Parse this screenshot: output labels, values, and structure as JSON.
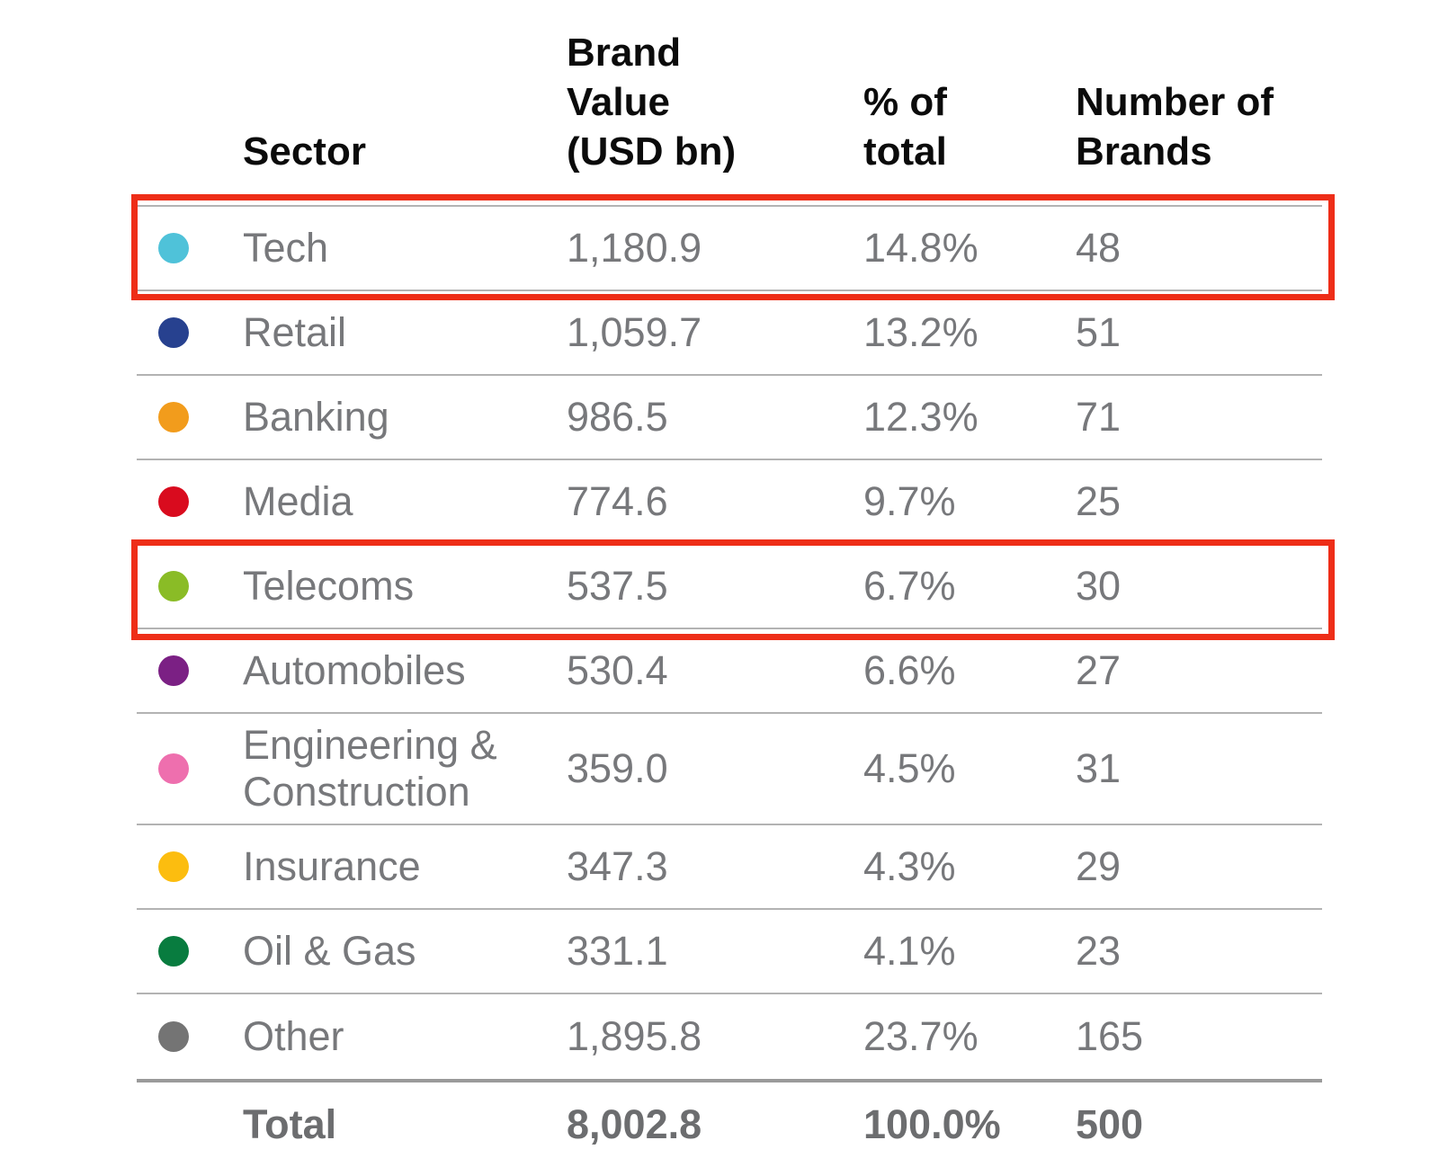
{
  "table": {
    "headers": {
      "sector": "Sector",
      "brand_value": "Brand\nValue\n(USD bn)",
      "pct_of_total": "% of\ntotal",
      "num_brands": "Number of\nBrands"
    },
    "rows": [
      {
        "sector": "Tech",
        "dot_color": "#4fc2d9",
        "brand_value": "1,180.9",
        "pct_of_total": "14.8%",
        "num_brands": "48",
        "highlighted": true
      },
      {
        "sector": "Retail",
        "dot_color": "#27418f",
        "brand_value": "1,059.7",
        "pct_of_total": "13.2%",
        "num_brands": "51",
        "highlighted": false
      },
      {
        "sector": "Banking",
        "dot_color": "#f29c1c",
        "brand_value": "986.5",
        "pct_of_total": "12.3%",
        "num_brands": "71",
        "highlighted": false
      },
      {
        "sector": "Media",
        "dot_color": "#d90b1e",
        "brand_value": "774.6",
        "pct_of_total": "9.7%",
        "num_brands": "25",
        "highlighted": false
      },
      {
        "sector": "Telecoms",
        "dot_color": "#8abc26",
        "brand_value": "537.5",
        "pct_of_total": "6.7%",
        "num_brands": "30",
        "highlighted": true
      },
      {
        "sector": "Automobiles",
        "dot_color": "#7b2084",
        "brand_value": "530.4",
        "pct_of_total": "6.6%",
        "num_brands": "27",
        "highlighted": false
      },
      {
        "sector": "Engineering &\nConstruction",
        "dot_color": "#ee6fae",
        "brand_value": "359.0",
        "pct_of_total": "4.5%",
        "num_brands": "31",
        "highlighted": false
      },
      {
        "sector": "Insurance",
        "dot_color": "#fcbd0f",
        "brand_value": "347.3",
        "pct_of_total": "4.3%",
        "num_brands": "29",
        "highlighted": false
      },
      {
        "sector": "Oil & Gas",
        "dot_color": "#087c3f",
        "brand_value": "331.1",
        "pct_of_total": "4.1%",
        "num_brands": "23",
        "highlighted": false
      },
      {
        "sector": "Other",
        "dot_color": "#747474",
        "brand_value": "1,895.8",
        "pct_of_total": "23.7%",
        "num_brands": "165",
        "highlighted": false
      }
    ],
    "total": {
      "label": "Total",
      "brand_value": "8,002.8",
      "pct_of_total": "100.0%",
      "num_brands": "500"
    }
  },
  "highlight": {
    "color": "#ee2e18"
  },
  "chart_data": {
    "type": "table",
    "title": "",
    "columns": [
      "Sector",
      "Brand Value (USD bn)",
      "% of total",
      "Number of Brands"
    ],
    "rows": [
      [
        "Tech",
        1180.9,
        "14.8%",
        48
      ],
      [
        "Retail",
        1059.7,
        "13.2%",
        51
      ],
      [
        "Banking",
        986.5,
        "12.3%",
        71
      ],
      [
        "Media",
        774.6,
        "9.7%",
        25
      ],
      [
        "Telecoms",
        537.5,
        "6.7%",
        30
      ],
      [
        "Automobiles",
        530.4,
        "6.6%",
        27
      ],
      [
        "Engineering & Construction",
        359.0,
        "4.5%",
        31
      ],
      [
        "Insurance",
        347.3,
        "4.3%",
        29
      ],
      [
        "Oil & Gas",
        331.1,
        "4.1%",
        23
      ],
      [
        "Other",
        1895.8,
        "23.7%",
        165
      ]
    ],
    "total_row": [
      "Total",
      8002.8,
      "100.0%",
      500
    ],
    "highlighted_rows": [
      "Tech",
      "Telecoms"
    ],
    "legend_dot_colors": {
      "Tech": "#4fc2d9",
      "Retail": "#27418f",
      "Banking": "#f29c1c",
      "Media": "#d90b1e",
      "Telecoms": "#8abc26",
      "Automobiles": "#7b2084",
      "Engineering & Construction": "#ee6fae",
      "Insurance": "#fcbd0f",
      "Oil & Gas": "#087c3f",
      "Other": "#747474"
    }
  }
}
